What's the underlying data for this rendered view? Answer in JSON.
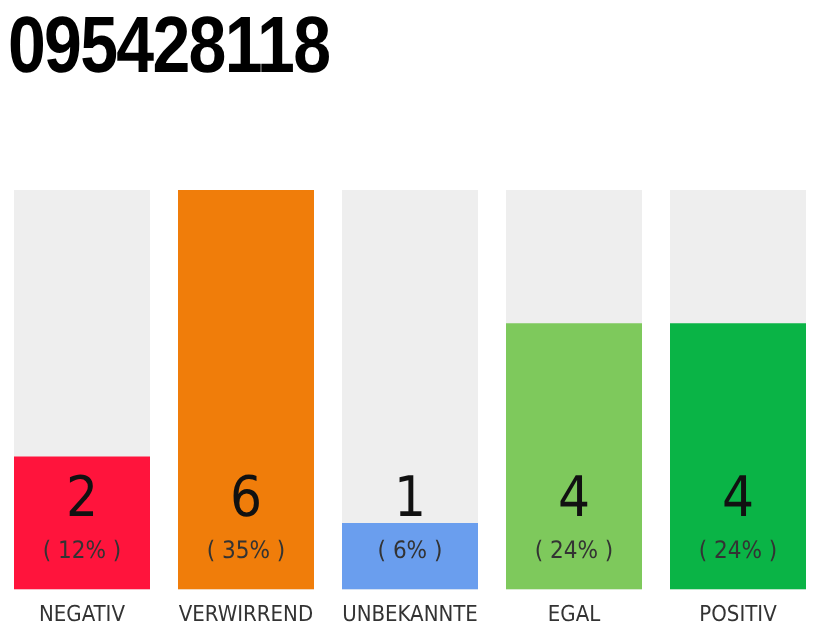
{
  "chart_data": {
    "type": "bar",
    "title": "095428118",
    "categories": [
      "NEGATIV",
      "VERWIRREND",
      "UNBEKANNTE",
      "EGAL",
      "POSITIV"
    ],
    "values": [
      2,
      6,
      1,
      4,
      4
    ],
    "colors": [
      "#ff143c",
      "#f07d0a",
      "#6a9eee",
      "#7ec95c",
      "#0ab446"
    ],
    "value_labels": [
      "2",
      "6",
      "1",
      "4",
      "4"
    ],
    "annotations": [
      "( 12% )",
      "( 35% )",
      "( 6% )",
      "( 24% )",
      "( 24% )"
    ],
    "grid": false,
    "legend": false
  }
}
